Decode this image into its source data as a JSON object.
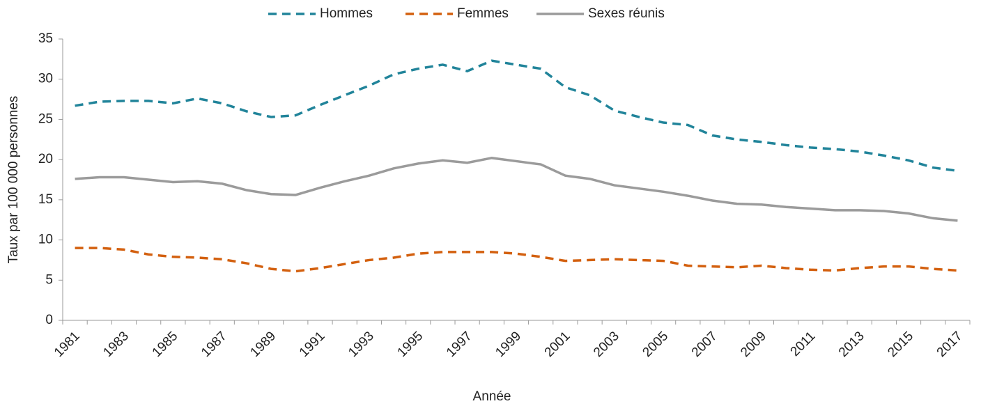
{
  "chart_data": {
    "type": "line",
    "x_label": "Année",
    "y_label": "Taux par 100 000 personnes",
    "categories": [
      "1981",
      null,
      "1983",
      null,
      "1985",
      null,
      "1987",
      null,
      "1989",
      null,
      "1991",
      null,
      "1993",
      null,
      "1995",
      null,
      "1997",
      null,
      "1999",
      null,
      "2001",
      null,
      "2003",
      null,
      "2005",
      null,
      "2007",
      null,
      "2009",
      null,
      "2011",
      null,
      "2013",
      null,
      "2015",
      null,
      "2017"
    ],
    "series": [
      {
        "name": "Hommes",
        "color": "#21849a",
        "dash": true,
        "values": [
          26.7,
          27.2,
          27.3,
          27.3,
          27.0,
          27.6,
          27.0,
          26.0,
          25.3,
          25.5,
          26.8,
          28.0,
          29.2,
          30.6,
          31.3,
          31.8,
          31.0,
          32.3,
          31.8,
          31.3,
          29.0,
          28.0,
          26.1,
          25.3,
          24.6,
          24.3,
          23.0,
          22.5,
          22.2,
          21.8,
          21.5,
          21.3,
          21.0,
          20.5,
          19.9,
          19.0,
          18.6
        ]
      },
      {
        "name": "Femmes",
        "color": "#d3600f",
        "dash": true,
        "values": [
          9.0,
          9.0,
          8.8,
          8.2,
          7.9,
          7.8,
          7.6,
          7.1,
          6.4,
          6.1,
          6.5,
          7.0,
          7.5,
          7.8,
          8.3,
          8.5,
          8.5,
          8.5,
          8.3,
          7.9,
          7.4,
          7.5,
          7.6,
          7.5,
          7.4,
          6.8,
          6.7,
          6.6,
          6.8,
          6.5,
          6.3,
          6.2,
          6.5,
          6.7,
          6.7,
          6.4,
          6.2
        ]
      },
      {
        "name": "Sexes réunis",
        "color": "#9b9b9b",
        "dash": false,
        "values": [
          17.6,
          17.8,
          17.8,
          17.5,
          17.2,
          17.3,
          17.0,
          16.2,
          15.7,
          15.6,
          16.5,
          17.3,
          18.0,
          18.9,
          19.5,
          19.9,
          19.6,
          20.2,
          19.8,
          19.4,
          18.0,
          17.6,
          16.8,
          16.4,
          16.0,
          15.5,
          14.9,
          14.5,
          14.4,
          14.1,
          13.9,
          13.7,
          13.7,
          13.6,
          13.3,
          12.7,
          12.4
        ]
      }
    ],
    "ylim": [
      0,
      35
    ],
    "yticks": [
      0,
      5,
      10,
      15,
      20,
      25,
      30,
      35
    ],
    "legend": "top"
  }
}
